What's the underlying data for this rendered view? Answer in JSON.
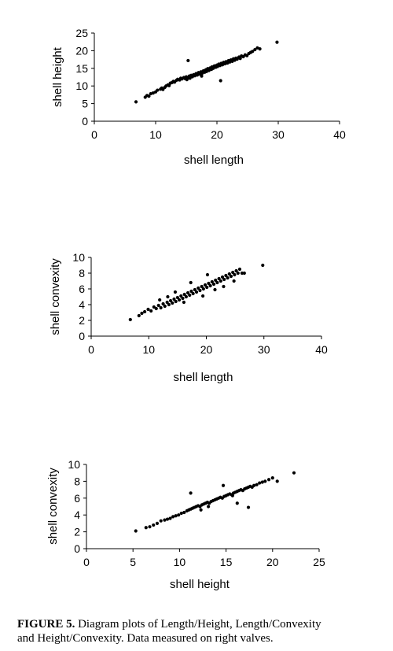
{
  "caption": {
    "label": "FIGURE 5.",
    "line1": " Diagram plots of Length/Height, Length/Convexity",
    "line2": "and Height/Convexity. Data measured on right valves."
  },
  "chart_data": [
    {
      "type": "scatter",
      "xlabel": "shell length",
      "ylabel": "shell height",
      "xlim": [
        0,
        40
      ],
      "ylim": [
        0,
        25
      ],
      "xticks": [
        0,
        10,
        20,
        30,
        40
      ],
      "yticks": [
        0,
        5,
        10,
        15,
        20,
        25
      ],
      "grid": false,
      "legend": "none",
      "x": [
        6.8,
        8.3,
        8.6,
        8.9,
        9.2,
        9.6,
        10.0,
        10.3,
        10.8,
        11.0,
        11.2,
        11.5,
        11.7,
        12.0,
        12.2,
        12.4,
        12.7,
        12.9,
        13.1,
        13.4,
        13.6,
        13.9,
        14.1,
        14.3,
        14.6,
        14.8,
        15.0,
        15.1,
        15.3,
        15.5,
        15.6,
        15.8,
        16.0,
        16.2,
        16.4,
        16.6,
        16.8,
        17.0,
        17.2,
        17.4,
        17.6,
        17.8,
        18.0,
        18.2,
        18.3,
        18.5,
        18.7,
        18.9,
        19.1,
        19.2,
        19.4,
        19.6,
        19.8,
        20.0,
        20.1,
        20.3,
        20.5,
        20.7,
        20.9,
        21.1,
        21.3,
        21.5,
        21.7,
        21.9,
        22.1,
        22.3,
        22.5,
        22.7,
        22.9,
        23.1,
        23.3,
        23.6,
        23.8,
        24.0,
        24.3,
        24.6,
        24.9,
        25.2,
        25.5,
        25.8,
        26.2,
        26.6,
        27.0,
        15.3,
        20.6,
        17.5,
        29.8
      ],
      "y": [
        5.5,
        6.8,
        7.3,
        7.1,
        7.8,
        8.0,
        8.3,
        8.8,
        9.1,
        9.4,
        9.0,
        9.6,
        10.0,
        10.3,
        10.1,
        10.8,
        11.0,
        11.3,
        11.1,
        11.6,
        11.9,
        11.7,
        12.2,
        12.0,
        12.4,
        12.1,
        12.6,
        11.8,
        12.3,
        12.8,
        12.2,
        13.0,
        12.6,
        13.2,
        12.9,
        13.5,
        13.1,
        13.8,
        13.4,
        14.0,
        13.6,
        14.3,
        13.9,
        14.6,
        14.1,
        14.9,
        14.4,
        15.1,
        14.7,
        15.4,
        15.0,
        15.7,
        15.3,
        15.9,
        15.5,
        16.2,
        15.8,
        16.4,
        16.0,
        16.7,
        16.3,
        16.9,
        16.5,
        17.2,
        16.8,
        17.4,
        17.0,
        17.7,
        17.3,
        17.9,
        17.6,
        18.2,
        17.8,
        18.5,
        18.3,
        18.8,
        18.6,
        19.2,
        19.5,
        19.8,
        20.3,
        20.8,
        20.5,
        17.2,
        11.5,
        12.8,
        22.4
      ]
    },
    {
      "type": "scatter",
      "xlabel": "shell  length",
      "ylabel": "shell  convexity",
      "xlim": [
        0,
        40
      ],
      "ylim": [
        0,
        10
      ],
      "xticks": [
        0,
        10,
        20,
        30,
        40
      ],
      "yticks": [
        0,
        2,
        4,
        6,
        8,
        10
      ],
      "grid": false,
      "legend": "none",
      "x": [
        6.8,
        8.3,
        8.8,
        9.3,
        9.9,
        10.4,
        10.9,
        11.3,
        11.7,
        12.1,
        12.5,
        12.8,
        13.2,
        13.5,
        13.8,
        14.1,
        14.4,
        14.7,
        15.0,
        15.3,
        15.6,
        15.9,
        16.2,
        16.5,
        16.8,
        17.1,
        17.4,
        17.7,
        18.0,
        18.3,
        18.6,
        18.9,
        19.2,
        19.5,
        19.8,
        20.1,
        20.4,
        20.7,
        21.0,
        21.3,
        21.6,
        21.9,
        22.2,
        22.5,
        22.8,
        23.1,
        23.4,
        23.7,
        24.0,
        24.3,
        24.6,
        24.9,
        25.2,
        25.5,
        25.8,
        26.2,
        26.6,
        13.3,
        16.1,
        19.4,
        21.5,
        23.0,
        24.8,
        20.2,
        17.3,
        14.6,
        11.9,
        29.8
      ],
      "y": [
        2.1,
        2.6,
        2.9,
        3.1,
        3.4,
        3.2,
        3.7,
        3.5,
        3.9,
        3.6,
        4.1,
        3.8,
        4.3,
        4.0,
        4.5,
        4.2,
        4.7,
        4.4,
        4.9,
        4.6,
        5.1,
        4.8,
        5.3,
        5.0,
        5.5,
        5.2,
        5.7,
        5.4,
        5.9,
        5.6,
        6.1,
        5.8,
        6.3,
        6.0,
        6.5,
        6.2,
        6.7,
        6.4,
        6.9,
        6.6,
        7.1,
        6.8,
        7.3,
        7.0,
        7.5,
        7.2,
        7.7,
        7.4,
        7.9,
        7.6,
        8.1,
        7.8,
        8.3,
        8.0,
        8.5,
        8.0,
        8.0,
        5.0,
        4.3,
        5.1,
        5.9,
        6.3,
        7.0,
        7.8,
        6.8,
        5.6,
        4.6,
        9.0
      ]
    },
    {
      "type": "scatter",
      "xlabel": "shell height",
      "ylabel": "shell  convexity",
      "xlim": [
        0,
        25
      ],
      "ylim": [
        0,
        10
      ],
      "xticks": [
        0,
        5,
        10,
        15,
        20,
        25
      ],
      "yticks": [
        0,
        2,
        4,
        6,
        8,
        10
      ],
      "grid": false,
      "legend": "none",
      "x": [
        5.3,
        6.4,
        6.8,
        7.2,
        7.6,
        8.0,
        8.4,
        8.7,
        9.0,
        9.3,
        9.6,
        9.9,
        10.2,
        10.5,
        10.8,
        11.0,
        11.2,
        11.4,
        11.6,
        11.8,
        12.0,
        12.2,
        12.4,
        12.6,
        12.8,
        13.0,
        13.2,
        13.4,
        13.6,
        13.8,
        14.0,
        14.2,
        14.4,
        14.6,
        14.8,
        15.0,
        15.2,
        15.4,
        15.6,
        15.8,
        16.0,
        16.2,
        16.4,
        16.6,
        16.8,
        17.0,
        17.2,
        17.4,
        17.6,
        17.8,
        18.0,
        18.3,
        18.6,
        18.9,
        19.2,
        19.6,
        20.0,
        20.5,
        11.2,
        14.7,
        16.2,
        17.4,
        13.1,
        15.7,
        12.3,
        22.3
      ],
      "y": [
        2.1,
        2.5,
        2.6,
        2.8,
        3.0,
        3.3,
        3.4,
        3.5,
        3.6,
        3.8,
        3.9,
        4.0,
        4.2,
        4.3,
        4.5,
        4.6,
        4.7,
        4.8,
        4.9,
        5.0,
        5.1,
        5.0,
        5.2,
        5.3,
        5.4,
        5.5,
        5.4,
        5.6,
        5.7,
        5.8,
        5.9,
        6.0,
        6.1,
        6.0,
        6.2,
        6.3,
        6.4,
        6.5,
        6.4,
        6.6,
        6.7,
        6.8,
        6.9,
        7.0,
        6.9,
        7.1,
        7.2,
        7.3,
        7.4,
        7.3,
        7.5,
        7.6,
        7.8,
        7.9,
        8.0,
        8.2,
        8.4,
        8.0,
        6.6,
        7.5,
        5.4,
        4.9,
        5.0,
        6.3,
        4.6,
        9.0
      ]
    }
  ]
}
